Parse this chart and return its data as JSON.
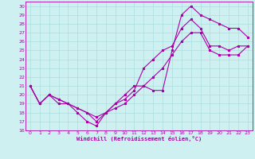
{
  "xlabel": "Windchill (Refroidissement éolien,°C)",
  "bg_color": "#cff0f0",
  "line_color": "#aa00aa",
  "grid_color": "#aadddd",
  "xlim": [
    -0.5,
    23.5
  ],
  "ylim": [
    16,
    30.5
  ],
  "xticks": [
    0,
    1,
    2,
    3,
    4,
    5,
    6,
    7,
    8,
    9,
    10,
    11,
    12,
    13,
    14,
    15,
    16,
    17,
    18,
    19,
    20,
    21,
    22,
    23
  ],
  "yticks": [
    16,
    17,
    18,
    19,
    20,
    21,
    22,
    23,
    24,
    25,
    26,
    27,
    28,
    29,
    30
  ],
  "line1_x": [
    0,
    1,
    2,
    3,
    4,
    5,
    6,
    7,
    8,
    9,
    10,
    11,
    12,
    13,
    14,
    15,
    16,
    17,
    18,
    19,
    20,
    21,
    22,
    23
  ],
  "line1_y": [
    21,
    19,
    20,
    19,
    19,
    18,
    17,
    16.5,
    18,
    19,
    20,
    21,
    21,
    20.5,
    20.5,
    25,
    29,
    30,
    29,
    28.5,
    28,
    27.5,
    27.5,
    26.5
  ],
  "line2_x": [
    0,
    1,
    2,
    3,
    4,
    5,
    6,
    7,
    8,
    9,
    10,
    11,
    12,
    13,
    14,
    15,
    16,
    17,
    18,
    19,
    20,
    21,
    22,
    23
  ],
  "line2_y": [
    21,
    19,
    20,
    19.5,
    19,
    18.5,
    18,
    17.5,
    18,
    19,
    19.5,
    20.5,
    23,
    24,
    25,
    25.5,
    27.5,
    28.5,
    27.5,
    25.5,
    25.5,
    25,
    25.5,
    25.5
  ],
  "line3_x": [
    0,
    1,
    2,
    3,
    4,
    5,
    6,
    7,
    8,
    9,
    10,
    11,
    12,
    13,
    14,
    15,
    16,
    17,
    18,
    19,
    20,
    21,
    22,
    23
  ],
  "line3_y": [
    21,
    19,
    20,
    19.5,
    19,
    18.5,
    18,
    17,
    18,
    18.5,
    19,
    20,
    21,
    22,
    23,
    24.5,
    26,
    27,
    27,
    25,
    24.5,
    24.5,
    24.5,
    25.5
  ]
}
